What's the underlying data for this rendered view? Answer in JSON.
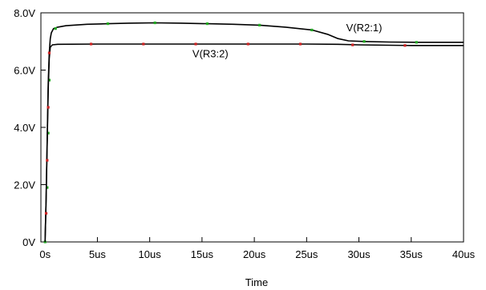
{
  "chart_data": {
    "type": "line",
    "xlabel": "Time",
    "ylabel": "",
    "x_unit": "us",
    "y_unit": "V",
    "xlim": [
      -0.4,
      40
    ],
    "ylim": [
      0,
      8
    ],
    "x_ticks": [
      0,
      5,
      10,
      15,
      20,
      25,
      30,
      35,
      40
    ],
    "x_tick_labels": [
      "0s",
      "5us",
      "10us",
      "15us",
      "20us",
      "25us",
      "30us",
      "35us",
      "40us"
    ],
    "y_ticks": [
      0,
      2,
      4,
      6,
      8
    ],
    "y_tick_labels": [
      "0V",
      "2.0V",
      "4.0V",
      "6.0V",
      "8.0V"
    ],
    "grid": false,
    "legend": "none",
    "series": [
      {
        "name": "V(R2:1)",
        "color": "#000000",
        "marker_color": "#22aa22",
        "points": [
          [
            0,
            0
          ],
          [
            0.1,
            1.5
          ],
          [
            0.2,
            3.5
          ],
          [
            0.3,
            5.5
          ],
          [
            0.4,
            6.6
          ],
          [
            0.5,
            7.1
          ],
          [
            0.6,
            7.3
          ],
          [
            0.8,
            7.45
          ],
          [
            1.2,
            7.5
          ],
          [
            2,
            7.55
          ],
          [
            4,
            7.6
          ],
          [
            6,
            7.62
          ],
          [
            8,
            7.64
          ],
          [
            10.5,
            7.65
          ],
          [
            13,
            7.64
          ],
          [
            15.5,
            7.62
          ],
          [
            18,
            7.6
          ],
          [
            20.5,
            7.57
          ],
          [
            23,
            7.5
          ],
          [
            25.5,
            7.4
          ],
          [
            27,
            7.25
          ],
          [
            28,
            7.1
          ],
          [
            29,
            7.02
          ],
          [
            30.5,
            7.0
          ],
          [
            33,
            6.98
          ],
          [
            35.5,
            6.97
          ],
          [
            40,
            6.97
          ]
        ],
        "markers": [
          [
            0,
            0
          ],
          [
            0.2,
            1.9
          ],
          [
            0.3,
            3.8
          ],
          [
            0.4,
            5.65
          ],
          [
            1,
            7.45
          ],
          [
            6,
            7.62
          ],
          [
            10.5,
            7.65
          ],
          [
            15.5,
            7.62
          ],
          [
            20.5,
            7.57
          ],
          [
            25.5,
            7.4
          ],
          [
            30.5,
            7.0
          ],
          [
            35.5,
            6.97
          ]
        ]
      },
      {
        "name": "V(R3:2)",
        "color": "#000000",
        "marker_color": "#cc2222",
        "points": [
          [
            0,
            0
          ],
          [
            0.1,
            1.5
          ],
          [
            0.2,
            3.4
          ],
          [
            0.3,
            5.3
          ],
          [
            0.4,
            6.4
          ],
          [
            0.5,
            6.8
          ],
          [
            0.7,
            6.88
          ],
          [
            1.2,
            6.9
          ],
          [
            5,
            6.91
          ],
          [
            10,
            6.91
          ],
          [
            15,
            6.91
          ],
          [
            20,
            6.91
          ],
          [
            25,
            6.91
          ],
          [
            28,
            6.9
          ],
          [
            30,
            6.88
          ],
          [
            35,
            6.86
          ],
          [
            40,
            6.86
          ]
        ],
        "markers": [
          [
            0.1,
            1.0
          ],
          [
            0.2,
            2.85
          ],
          [
            0.3,
            4.7
          ],
          [
            0.4,
            6.6
          ],
          [
            4.4,
            6.91
          ],
          [
            9.4,
            6.91
          ],
          [
            14.4,
            6.91
          ],
          [
            19.4,
            6.91
          ],
          [
            24.4,
            6.91
          ],
          [
            29.4,
            6.88
          ],
          [
            34.4,
            6.86
          ]
        ]
      }
    ],
    "annotations": [
      {
        "text": "V(R2:1)",
        "x": 30.5,
        "y": 7.35
      },
      {
        "text": "V(R3:2)",
        "x": 15.8,
        "y": 6.45
      }
    ]
  }
}
